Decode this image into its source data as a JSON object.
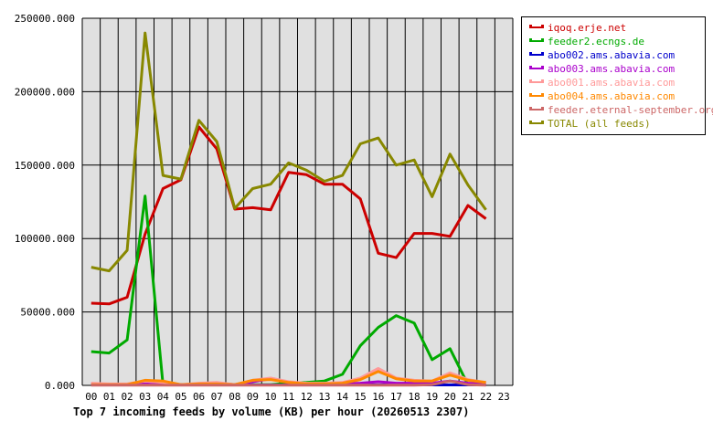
{
  "chart_data": {
    "type": "line",
    "title": "Top 7 incoming feeds by volume (KB) per hour (20260513 2307)",
    "xlabel": "",
    "ylabel": "",
    "x": [
      "00",
      "01",
      "02",
      "03",
      "04",
      "05",
      "06",
      "07",
      "08",
      "09",
      "10",
      "11",
      "12",
      "13",
      "14",
      "15",
      "16",
      "17",
      "18",
      "19",
      "20",
      "21",
      "22",
      "23"
    ],
    "ylim": [
      0,
      250000
    ],
    "yticks": [
      "0.000",
      "50000.000",
      "100000.000",
      "150000.000",
      "200000.000",
      "250000.000"
    ],
    "ytick_values": [
      0,
      50000,
      100000,
      150000,
      200000,
      250000
    ],
    "grid": true,
    "legend_position": "right",
    "background": "#e0e0e0",
    "series": [
      {
        "name": "iqoq.erje.net",
        "color": "#cc0000",
        "values": [
          56000,
          55500,
          60000,
          103000,
          134000,
          140000,
          176000,
          161000,
          120000,
          121000,
          119500,
          145000,
          143500,
          137000,
          137000,
          127000,
          90000,
          87000,
          103500,
          103500,
          101500,
          122500,
          113500,
          null
        ]
      },
      {
        "name": "feeder2.ecngs.de",
        "color": "#00aa00",
        "values": [
          23000,
          22000,
          31000,
          129000,
          500,
          500,
          500,
          500,
          500,
          500,
          500,
          1500,
          2000,
          3000,
          7500,
          27000,
          39500,
          47500,
          42500,
          17500,
          25000,
          500,
          null,
          null
        ]
      },
      {
        "name": "abo002.ams.abavia.com",
        "color": "#0000cc",
        "values": [
          500,
          300,
          300,
          500,
          300,
          300,
          300,
          300,
          300,
          300,
          300,
          300,
          300,
          300,
          300,
          300,
          300,
          300,
          300,
          300,
          300,
          300,
          300,
          null
        ]
      },
      {
        "name": "abo003.ams.abavia.com",
        "color": "#aa00cc",
        "values": [
          1000,
          500,
          500,
          1000,
          500,
          500,
          1000,
          1500,
          500,
          2500,
          4500,
          2000,
          1000,
          1000,
          1000,
          1500,
          2500,
          1500,
          1500,
          1500,
          3000,
          1500,
          1000,
          null
        ]
      },
      {
        "name": "abo001.ams.abavia.com",
        "color": "#ff9999",
        "values": [
          1500,
          1000,
          1000,
          3000,
          2000,
          500,
          1500,
          2000,
          500,
          3500,
          5000,
          2500,
          1500,
          1500,
          2000,
          5000,
          11500,
          5000,
          3500,
          3000,
          8500,
          4000,
          2000,
          null
        ]
      },
      {
        "name": "abo004.ams.abavia.com",
        "color": "#ff8800",
        "values": [
          500,
          500,
          500,
          3500,
          3000,
          500,
          1000,
          1000,
          500,
          3500,
          4000,
          2000,
          1000,
          1000,
          1500,
          4000,
          9500,
          4500,
          3000,
          3000,
          7000,
          3500,
          2000,
          null
        ]
      },
      {
        "name": "feeder.eternal-september.org",
        "color": "#cc6666",
        "values": [
          200,
          200,
          200,
          200,
          200,
          200,
          200,
          200,
          200,
          200,
          200,
          200,
          200,
          200,
          200,
          200,
          200,
          200,
          200,
          500,
          3000,
          500,
          200,
          null
        ]
      },
      {
        "name": "TOTAL (all feeds)",
        "color": "#888800",
        "values": [
          80500,
          78000,
          92000,
          240000,
          143000,
          140500,
          180500,
          166000,
          120500,
          134000,
          137000,
          151500,
          146500,
          139000,
          143000,
          164500,
          168500,
          150000,
          153500,
          128500,
          157500,
          136500,
          119500,
          null
        ]
      }
    ]
  }
}
